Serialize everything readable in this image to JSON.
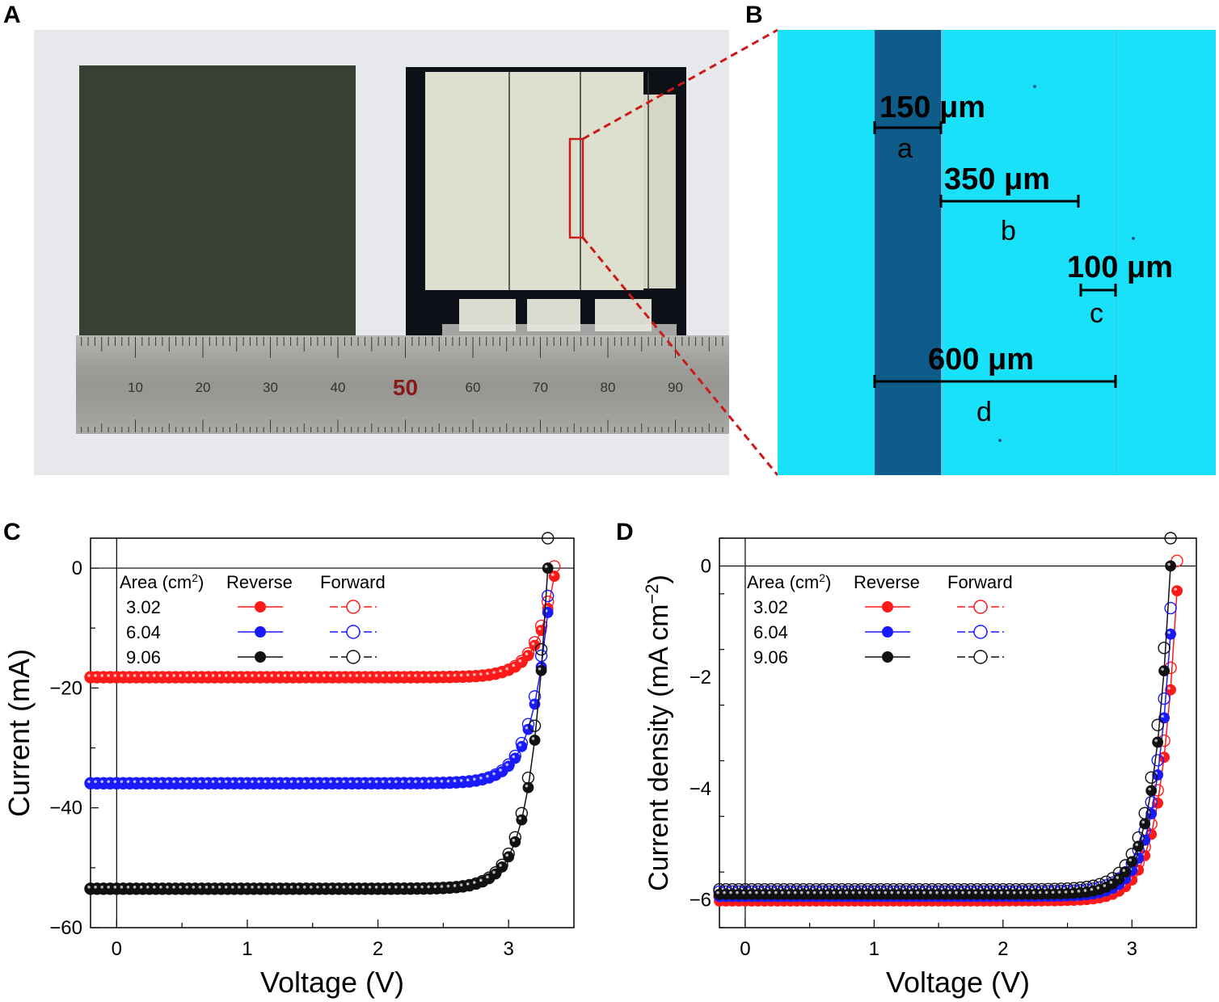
{
  "panels": {
    "a": "A",
    "b": "B",
    "c": "C",
    "d": "D"
  },
  "ruler": {
    "ticks": [
      "10",
      "20",
      "30",
      "40",
      "50",
      "60",
      "70",
      "80",
      "90"
    ],
    "highlight": "50"
  },
  "micro": {
    "scales": [
      {
        "value": "150 μm",
        "letter": "a"
      },
      {
        "value": "350 μm",
        "letter": "b"
      },
      {
        "value": "100 μm",
        "letter": "c"
      },
      {
        "value": "600 μm",
        "letter": "d"
      }
    ]
  },
  "colors": {
    "red": "#ff1a1a",
    "blue": "#1a1aff",
    "black": "#111111",
    "cyan": "#19e1fa",
    "stripe": "#0d5c8a"
  },
  "legend": {
    "area_label": "Area (cm",
    "area_sup": "2",
    "area_close": ")",
    "reverse": "Reverse",
    "forward": "Forward",
    "areas": [
      "3.02",
      "6.04",
      "9.06"
    ]
  },
  "chart_data": [
    {
      "type": "line",
      "panel": "C",
      "xlabel": "Voltage (V)",
      "ylabel": "Current (mA)",
      "xlim": [
        -0.2,
        3.5
      ],
      "ylim": [
        -60,
        5
      ],
      "xticks": [
        "0",
        "1",
        "2",
        "3"
      ],
      "yticks": [
        "0",
        "−20",
        "−40",
        "−60"
      ],
      "series": [
        {
          "name": "3.02",
          "isc": -18.2,
          "voc": 3.36,
          "color": "#ff1a1a"
        },
        {
          "name": "6.04",
          "isc": -35.9,
          "voc": 3.33,
          "color": "#1a1aff"
        },
        {
          "name": "9.06",
          "isc": -53.5,
          "voc": 3.3,
          "color": "#111111"
        }
      ]
    },
    {
      "type": "line",
      "panel": "D",
      "xlabel": "Voltage (V)",
      "ylabel": "Current density (mA cm",
      "ylabel_sup": "−2",
      "ylabel_close": ")",
      "xlim": [
        -0.2,
        3.5
      ],
      "ylim": [
        -6.5,
        0.5
      ],
      "xticks": [
        "0",
        "1",
        "2",
        "3"
      ],
      "yticks": [
        "0",
        "−2",
        "−4",
        "−6"
      ],
      "series": [
        {
          "name": "3.02",
          "jsc": -6.02,
          "voc": 3.36,
          "color": "#ff1a1a"
        },
        {
          "name": "6.04",
          "jsc": -5.94,
          "voc": 3.33,
          "color": "#1a1aff"
        },
        {
          "name": "9.06",
          "jsc": -5.9,
          "voc": 3.3,
          "color": "#111111"
        }
      ]
    }
  ]
}
